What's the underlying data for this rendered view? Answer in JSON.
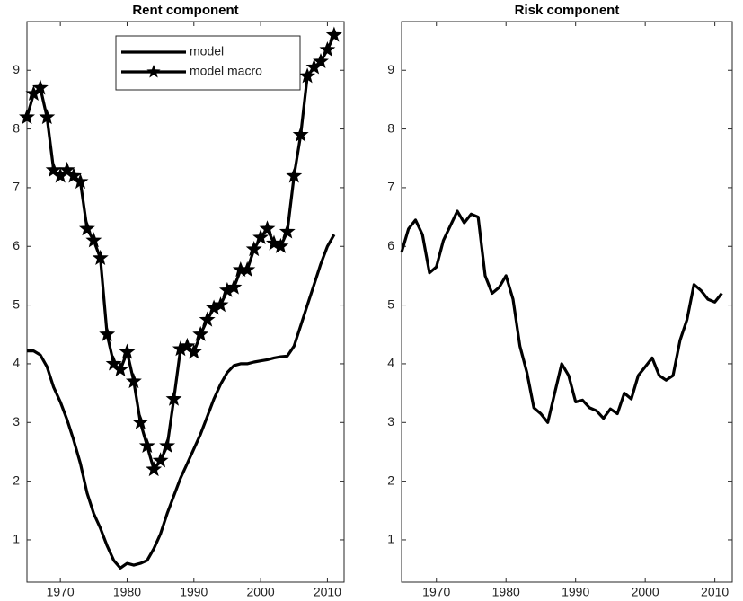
{
  "chart_data": [
    {
      "type": "line",
      "title": "Rent component",
      "legend": "north",
      "x": [
        1965,
        1966,
        1967,
        1968,
        1969,
        1970,
        1971,
        1972,
        1973,
        1974,
        1975,
        1976,
        1977,
        1978,
        1979,
        1980,
        1981,
        1982,
        1983,
        1984,
        1985,
        1986,
        1987,
        1988,
        1989,
        1990,
        1991,
        1992,
        1993,
        1994,
        1995,
        1996,
        1997,
        1998,
        1999,
        2000,
        2001,
        2002,
        2003,
        2004,
        2005,
        2006,
        2007,
        2008,
        2009,
        2010,
        2011
      ],
      "series": [
        {
          "name": "model",
          "color": "#000000",
          "marker": "none",
          "values": [
            4.22,
            4.22,
            4.15,
            3.95,
            3.6,
            3.35,
            3.05,
            2.7,
            2.3,
            1.8,
            1.45,
            1.2,
            0.9,
            0.65,
            0.52,
            0.6,
            0.57,
            0.6,
            0.65,
            0.85,
            1.1,
            1.45,
            1.75,
            2.05,
            2.3,
            2.55,
            2.8,
            3.1,
            3.4,
            3.65,
            3.85,
            3.97,
            4.0,
            4.0,
            4.03,
            4.05,
            4.07,
            4.1,
            4.12,
            4.13,
            4.3,
            4.65,
            5.0,
            5.35,
            5.7,
            6.0,
            6.2
          ]
        },
        {
          "name": "model macro",
          "color": "#000000",
          "marker": "star",
          "values": [
            8.2,
            8.6,
            8.7,
            8.2,
            7.3,
            7.2,
            7.3,
            7.2,
            7.1,
            6.3,
            6.1,
            5.8,
            4.5,
            4.0,
            3.9,
            4.2,
            3.7,
            3.0,
            2.6,
            2.2,
            2.35,
            2.6,
            3.4,
            4.25,
            4.3,
            4.2,
            4.5,
            4.75,
            4.95,
            5.0,
            5.25,
            5.3,
            5.6,
            5.6,
            5.95,
            6.15,
            6.3,
            6.05,
            6.0,
            6.25,
            7.2,
            7.9,
            8.9,
            9.05,
            9.15,
            9.35,
            9.6
          ]
        }
      ],
      "xlim": [
        1965,
        2012.5
      ],
      "xticks": [
        1970,
        1980,
        1990,
        2000,
        2010
      ],
      "ylim": [
        0.28,
        9.83
      ],
      "yticks": [
        1,
        2,
        3,
        4,
        5,
        6,
        7,
        8,
        9
      ]
    },
    {
      "type": "line",
      "title": "Risk component",
      "x": [
        1965,
        1966,
        1967,
        1968,
        1969,
        1970,
        1971,
        1972,
        1973,
        1974,
        1975,
        1976,
        1977,
        1978,
        1979,
        1980,
        1981,
        1982,
        1983,
        1984,
        1985,
        1986,
        1987,
        1988,
        1989,
        1990,
        1991,
        1992,
        1993,
        1994,
        1995,
        1996,
        1997,
        1998,
        1999,
        2000,
        2001,
        2002,
        2003,
        2004,
        2005,
        2006,
        2007,
        2008,
        2009,
        2010,
        2011
      ],
      "series": [
        {
          "color": "#000000",
          "marker": "none",
          "values": [
            5.9,
            6.3,
            6.45,
            6.2,
            5.55,
            5.65,
            6.1,
            6.35,
            6.6,
            6.4,
            6.55,
            6.5,
            5.5,
            5.2,
            5.3,
            5.5,
            5.1,
            4.3,
            3.85,
            3.25,
            3.15,
            3.0,
            3.5,
            4.0,
            3.8,
            3.35,
            3.38,
            3.25,
            3.2,
            3.07,
            3.23,
            3.15,
            3.5,
            3.4,
            3.8,
            3.95,
            4.1,
            3.8,
            3.72,
            3.8,
            4.4,
            4.75,
            5.35,
            5.25,
            5.1,
            5.05,
            5.2
          ]
        }
      ],
      "xlim": [
        1965,
        2012.5
      ],
      "xticks": [
        1970,
        1980,
        1990,
        2000,
        2010
      ],
      "ylim": [
        0.28,
        9.83
      ],
      "yticks": [
        1,
        2,
        3,
        4,
        5,
        6,
        7,
        8,
        9
      ]
    }
  ]
}
